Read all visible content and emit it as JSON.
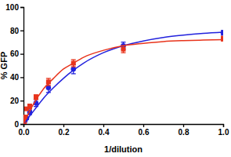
{
  "chart_data": {
    "type": "scatter",
    "x_label": "1/dilution",
    "y_label": "% GFP",
    "xlim": [
      0,
      1
    ],
    "ylim": [
      0,
      100
    ],
    "xticks": [
      {
        "value": 0,
        "label": "0.0"
      },
      {
        "value": 0.2,
        "label": "0.2"
      },
      {
        "value": 0.4,
        "label": "0.4"
      },
      {
        "value": 0.6,
        "label": "0.6"
      },
      {
        "value": 0.8,
        "label": "0.8"
      },
      {
        "value": 1,
        "label": "1.0"
      }
    ],
    "yticks": [
      0,
      20,
      40,
      60,
      80,
      100
    ],
    "grid": false,
    "series": [
      {
        "type": "scatter",
        "color": "#2222dd",
        "marker": "circle",
        "x": [
          0.00390625,
          0.0078125,
          0.015625,
          0.03125,
          0.0625,
          0.125,
          0.25,
          0.5,
          1
        ],
        "values": [
          1,
          3,
          5,
          10,
          18,
          31,
          47,
          67,
          78
        ],
        "errors": [
          1,
          1,
          1,
          2,
          3,
          4,
          4,
          3,
          2
        ]
      },
      {
        "type": "scatter",
        "color": "#e8341c",
        "marker": "square",
        "x": [
          0.00390625,
          0.0078125,
          0.015625,
          0.03125,
          0.0625,
          0.125,
          0.25,
          0.5,
          1
        ],
        "values": [
          2,
          6,
          13,
          15,
          23,
          36,
          52,
          64,
          73
        ],
        "errors": [
          1,
          1,
          1,
          2,
          2,
          3,
          3,
          3,
          2
        ]
      },
      {
        "type": "line",
        "color": "#2222dd",
        "line_style": "solid",
        "x": [
          0,
          0.05,
          0.1,
          0.15,
          0.2,
          0.25,
          0.3,
          0.4,
          0.5,
          0.6,
          0.7,
          0.8,
          0.9,
          1
        ],
        "values": [
          0,
          11,
          22,
          31,
          39,
          46,
          52,
          61,
          67,
          71,
          74,
          76,
          77.5,
          78.5
        ]
      },
      {
        "type": "line",
        "color": "#e8341c",
        "line_style": "solid",
        "x": [
          0,
          0.05,
          0.1,
          0.15,
          0.2,
          0.25,
          0.3,
          0.4,
          0.5,
          0.6,
          0.7,
          0.8,
          0.9,
          1
        ],
        "values": [
          0,
          17,
          30,
          39,
          47,
          52,
          57,
          63,
          67,
          69,
          70.5,
          71.3,
          71.8,
          72.2
        ]
      }
    ]
  }
}
